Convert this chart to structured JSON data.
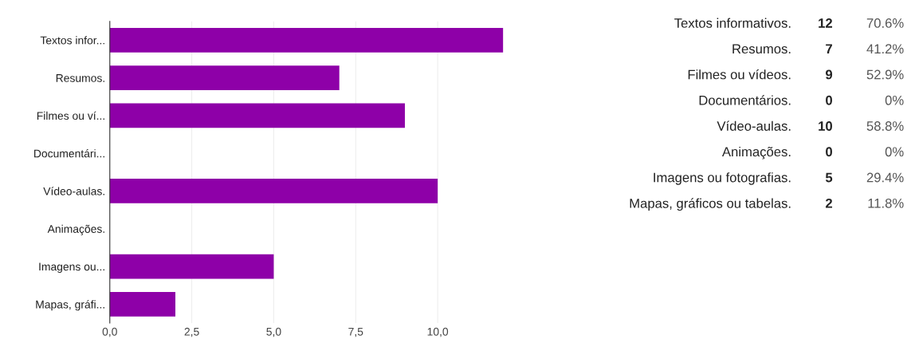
{
  "chart_data": [
    {
      "type": "bar",
      "orientation": "horizontal",
      "categories": [
        "Textos infor...",
        "Resumos.",
        "Filmes ou ví...",
        "Documentári...",
        "Vídeo-aulas.",
        "Animações.",
        "Imagens ou...",
        "Mapas, gráfi..."
      ],
      "values": [
        12,
        7,
        9,
        0,
        10,
        0,
        5,
        2
      ],
      "color": "#8e00a8",
      "xlim": [
        0,
        12
      ],
      "xticks": [
        {
          "value": 0,
          "label": "0,0"
        },
        {
          "value": 2.5,
          "label": "2,5"
        },
        {
          "value": 5,
          "label": "5,0"
        },
        {
          "value": 7.5,
          "label": "7,5"
        },
        {
          "value": 10,
          "label": "10,0"
        }
      ],
      "grid": "x"
    },
    {
      "type": "other",
      "categories": [
        "Textos informativos.",
        "Resumos.",
        "Filmes ou vídeos.",
        "Documentários.",
        "Vídeo-aulas.",
        "Animações.",
        "Imagens ou fotografias.",
        "Mapas, gráficos ou tabelas."
      ],
      "annotations": [
        "12",
        "7",
        "9",
        "0",
        "10",
        "0",
        "5",
        "2"
      ],
      "values": [
        70.6,
        41.2,
        52.9,
        0,
        58.8,
        0,
        29.4,
        11.8
      ],
      "value_labels": [
        "70.6%",
        "41.2%",
        "52.9%",
        "0%",
        "58.8%",
        "0%",
        "29.4%",
        "11.8%"
      ]
    }
  ]
}
